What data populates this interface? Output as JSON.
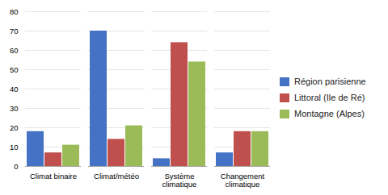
{
  "chart_data": {
    "type": "bar",
    "categories": [
      "Climat binaire",
      "Climat/météo",
      "Système\nclimatique",
      "Changement\nclimatique"
    ],
    "series": [
      {
        "name": "Région parisienne",
        "color": "#4472C4",
        "values": [
          18,
          70,
          4,
          7
        ]
      },
      {
        "name": "Littoral (Ile de Ré)",
        "color": "#C0504D",
        "values": [
          7,
          14,
          64,
          18
        ]
      },
      {
        "name": "Montagne (Alpes)",
        "color": "#9BBB59",
        "values": [
          11,
          21,
          54,
          18
        ]
      }
    ],
    "ylim": [
      0,
      80
    ],
    "yticks": [
      0,
      10,
      20,
      30,
      40,
      50,
      60,
      70,
      80
    ],
    "grid": true,
    "legend": "right"
  }
}
